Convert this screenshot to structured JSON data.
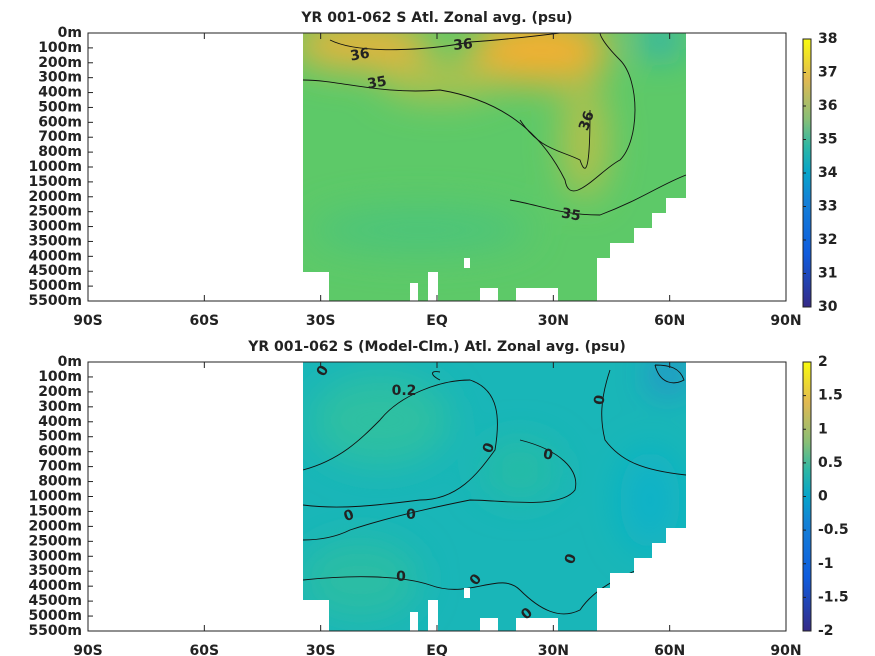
{
  "chart_data": [
    {
      "type": "contour",
      "title": "YR 001-062 S Atl. Zonal avg. (psu)",
      "xlim": [
        -90,
        90
      ],
      "xticks": [
        {
          "value": -90,
          "label": "90S"
        },
        {
          "value": -60,
          "label": "60S"
        },
        {
          "value": -30,
          "label": "30S"
        },
        {
          "value": 0,
          "label": "EQ"
        },
        {
          "value": 30,
          "label": "30N"
        },
        {
          "value": 60,
          "label": "60N"
        },
        {
          "value": 90,
          "label": "90N"
        }
      ],
      "categories": [
        "0m",
        "100m",
        "200m",
        "300m",
        "400m",
        "500m",
        "600m",
        "700m",
        "800m",
        "1000m",
        "1500m",
        "2000m",
        "2500m",
        "3000m",
        "3500m",
        "4000m",
        "4500m",
        "5000m",
        "5500m"
      ],
      "clim": [
        30,
        38
      ],
      "cticks": [
        30,
        31,
        32,
        33,
        34,
        35,
        36,
        37,
        38
      ],
      "annotations": [
        "36",
        "36",
        "35",
        "36",
        "35"
      ]
    },
    {
      "type": "contour",
      "title": "YR 001-062 S (Model-Clm.) Atl. Zonal avg. (psu)",
      "xlim": [
        -90,
        90
      ],
      "xticks": [
        {
          "value": -90,
          "label": "90S"
        },
        {
          "value": -60,
          "label": "60S"
        },
        {
          "value": -30,
          "label": "30S"
        },
        {
          "value": 0,
          "label": "EQ"
        },
        {
          "value": 30,
          "label": "30N"
        },
        {
          "value": 60,
          "label": "60N"
        },
        {
          "value": 90,
          "label": "90N"
        }
      ],
      "categories": [
        "0m",
        "100m",
        "200m",
        "300m",
        "400m",
        "500m",
        "600m",
        "700m",
        "800m",
        "1000m",
        "1500m",
        "2000m",
        "2500m",
        "3000m",
        "3500m",
        "4000m",
        "4500m",
        "5000m",
        "5500m"
      ],
      "clim": [
        -2,
        2
      ],
      "cticks": [
        -2,
        -1.5,
        -1,
        -0.5,
        0,
        0.5,
        1,
        1.5,
        2
      ],
      "annotations": [
        "0",
        "0.2",
        "0",
        "0",
        "0",
        "0",
        "0",
        "0",
        "0",
        "0",
        "0"
      ]
    }
  ]
}
